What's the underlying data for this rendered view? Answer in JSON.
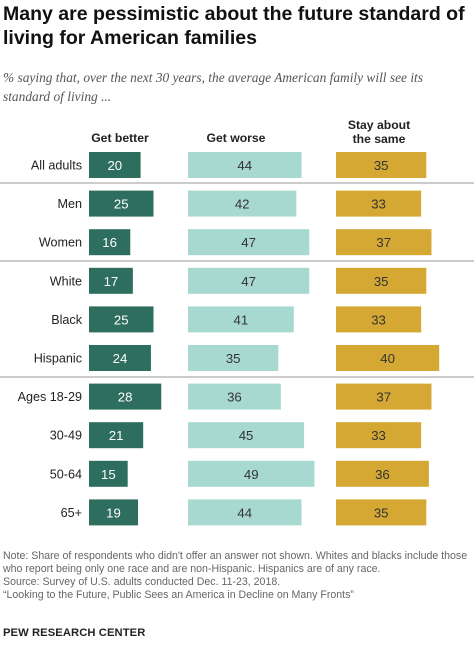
{
  "title": "Many are pessimistic about the future standard of living for American families",
  "subtitle": "% saying that, over the next 30 years, the average American family will see its standard of living ...",
  "note": "Note: Share of respondents who didn't offer an answer not shown. Whites and blacks include those who report being only one race and are non-Hispanic. Hispanics are of any race.",
  "source": "Source: Survey of U.S. adults conducted Dec. 11-23, 2018.",
  "report": "“Looking to the Future, Public Sees an America in Decline on Many Fronts”",
  "footer": "PEW RESEARCH CENTER",
  "colors": {
    "better": "#2e6e5e",
    "worse": "#a7d9d1",
    "same": "#d4a833",
    "divider": "#999999"
  },
  "chart_data": {
    "type": "bar",
    "orientation": "horizontal",
    "categories": [
      "All adults",
      "Men",
      "Women",
      "White",
      "Black",
      "Hispanic",
      "Ages 18-29",
      "30-49",
      "50-64",
      "65+"
    ],
    "groups": [
      [
        "All adults"
      ],
      [
        "Men",
        "Women"
      ],
      [
        "White",
        "Black",
        "Hispanic"
      ],
      [
        "Ages 18-29",
        "30-49",
        "50-64",
        "65+"
      ]
    ],
    "series": [
      {
        "name": "Get better",
        "values": [
          20,
          25,
          16,
          17,
          25,
          24,
          28,
          21,
          15,
          19
        ]
      },
      {
        "name": "Get worse",
        "values": [
          44,
          42,
          47,
          47,
          41,
          35,
          36,
          45,
          49,
          44
        ]
      },
      {
        "name": "Stay about the same",
        "values": [
          35,
          33,
          37,
          35,
          33,
          40,
          37,
          33,
          36,
          35
        ]
      }
    ],
    "series_labels": [
      "Get better",
      "Get worse",
      "Stay about\nthe same"
    ],
    "data_labels": true
  }
}
